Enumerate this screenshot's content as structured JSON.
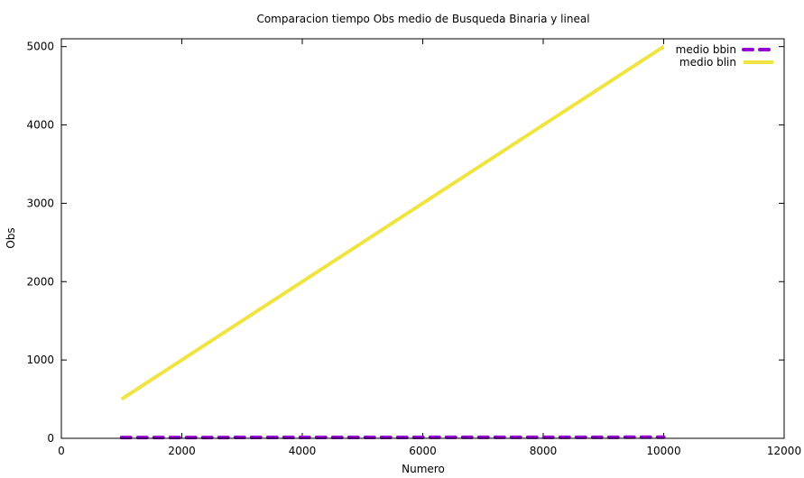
{
  "chart_data": {
    "type": "line",
    "title": "Comparacion tiempo Obs medio de Busqueda Binaria y lineal",
    "xlabel": "Numero",
    "ylabel": "Obs",
    "xlim": [
      0,
      12000
    ],
    "ylim": [
      0,
      5100
    ],
    "xticks": [
      0,
      2000,
      4000,
      6000,
      8000,
      10000,
      12000
    ],
    "yticks": [
      0,
      1000,
      2000,
      3000,
      4000,
      5000
    ],
    "grid": false,
    "legend_position": "top-right",
    "series": [
      {
        "name": "medio bbin",
        "color": "#9400d3",
        "style": "dashed",
        "x": [
          1000,
          10000
        ],
        "y": [
          10,
          14
        ]
      },
      {
        "name": "medio blin",
        "color": "#f0e442",
        "style": "solid",
        "x": [
          1000,
          10000
        ],
        "y": [
          500,
          5000
        ]
      }
    ]
  }
}
